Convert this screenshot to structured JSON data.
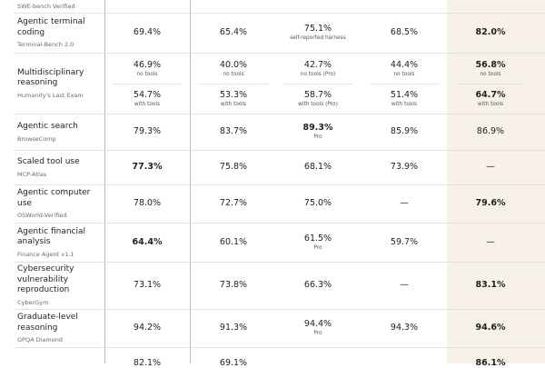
{
  "table": {
    "rows": [
      {
        "benchmark": "SWE-bench Verified"
      },
      {
        "label": "Agentic terminal coding",
        "benchmark": "Terminal-Bench 2.0",
        "cells": [
          {
            "value": "69.4%"
          },
          {
            "value": "65.4%"
          },
          {
            "value": "75.1%",
            "note": "self-reported harness"
          },
          {
            "value": "68.5%"
          },
          {
            "value": "82.0%",
            "bold": true
          }
        ]
      },
      {
        "label": "Multidisciplinary reasoning",
        "benchmark": "Humanity's Last Exam",
        "cells": [
          {
            "parts": [
              {
                "value": "46.9%",
                "note": "no tools"
              },
              {
                "value": "54.7%",
                "note": "with tools"
              }
            ]
          },
          {
            "parts": [
              {
                "value": "40.0%",
                "note": "no tools"
              },
              {
                "value": "53.3%",
                "note": "with tools"
              }
            ]
          },
          {
            "parts": [
              {
                "value": "42.7%",
                "note": "no tools (Pro)"
              },
              {
                "value": "58.7%",
                "note": "with tools (Pro)"
              }
            ]
          },
          {
            "parts": [
              {
                "value": "44.4%",
                "note": "no tools"
              },
              {
                "value": "51.4%",
                "note": "with tools"
              }
            ]
          },
          {
            "parts": [
              {
                "value": "56.8%",
                "note": "no tools",
                "bold": true
              },
              {
                "value": "64.7%",
                "note": "with tools",
                "bold": true
              }
            ]
          }
        ]
      },
      {
        "label": "Agentic search",
        "benchmark": "BrowseComp",
        "cells": [
          {
            "value": "79.3%"
          },
          {
            "value": "83.7%"
          },
          {
            "value": "89.3%",
            "note": "Pro",
            "bold": true
          },
          {
            "value": "85.9%"
          },
          {
            "value": "86.9%"
          }
        ]
      },
      {
        "label": "Scaled tool use",
        "benchmark": "MCP-Atlas",
        "cells": [
          {
            "value": "77.3%",
            "bold": true
          },
          {
            "value": "75.8%"
          },
          {
            "value": "68.1%"
          },
          {
            "value": "73.9%"
          },
          {
            "value": "—"
          }
        ]
      },
      {
        "label": "Agentic computer use",
        "benchmark": "OSWorld-Verified",
        "cells": [
          {
            "value": "78.0%"
          },
          {
            "value": "72.7%"
          },
          {
            "value": "75.0%"
          },
          {
            "value": "—"
          },
          {
            "value": "79.6%",
            "bold": true
          }
        ]
      },
      {
        "label": "Agentic financial analysis",
        "benchmark": "Finance Agent v1.1",
        "cells": [
          {
            "value": "64.4%",
            "bold": true
          },
          {
            "value": "60.1%"
          },
          {
            "value": "61.5%",
            "note": "Pro"
          },
          {
            "value": "59.7%"
          },
          {
            "value": "—"
          }
        ]
      },
      {
        "label": "Cybersecurity vulnerability reproduction",
        "benchmark": "CyberGym",
        "cells": [
          {
            "value": "73.1%"
          },
          {
            "value": "73.8%"
          },
          {
            "value": "66.3%"
          },
          {
            "value": "—"
          },
          {
            "value": "83.1%",
            "bold": true
          }
        ]
      },
      {
        "label": "Graduate-level reasoning",
        "benchmark": "GPQA Diamond",
        "cells": [
          {
            "value": "94.2%"
          },
          {
            "value": "91.3%"
          },
          {
            "value": "94.4%",
            "note": "Pro"
          },
          {
            "value": "94.3%"
          },
          {
            "value": "94.6%",
            "bold": true
          }
        ]
      },
      {
        "cells": [
          {
            "value": "82.1%"
          },
          {
            "value": "69.1%"
          },
          null,
          null,
          {
            "value": "86.1%",
            "bold": true
          }
        ]
      }
    ]
  }
}
